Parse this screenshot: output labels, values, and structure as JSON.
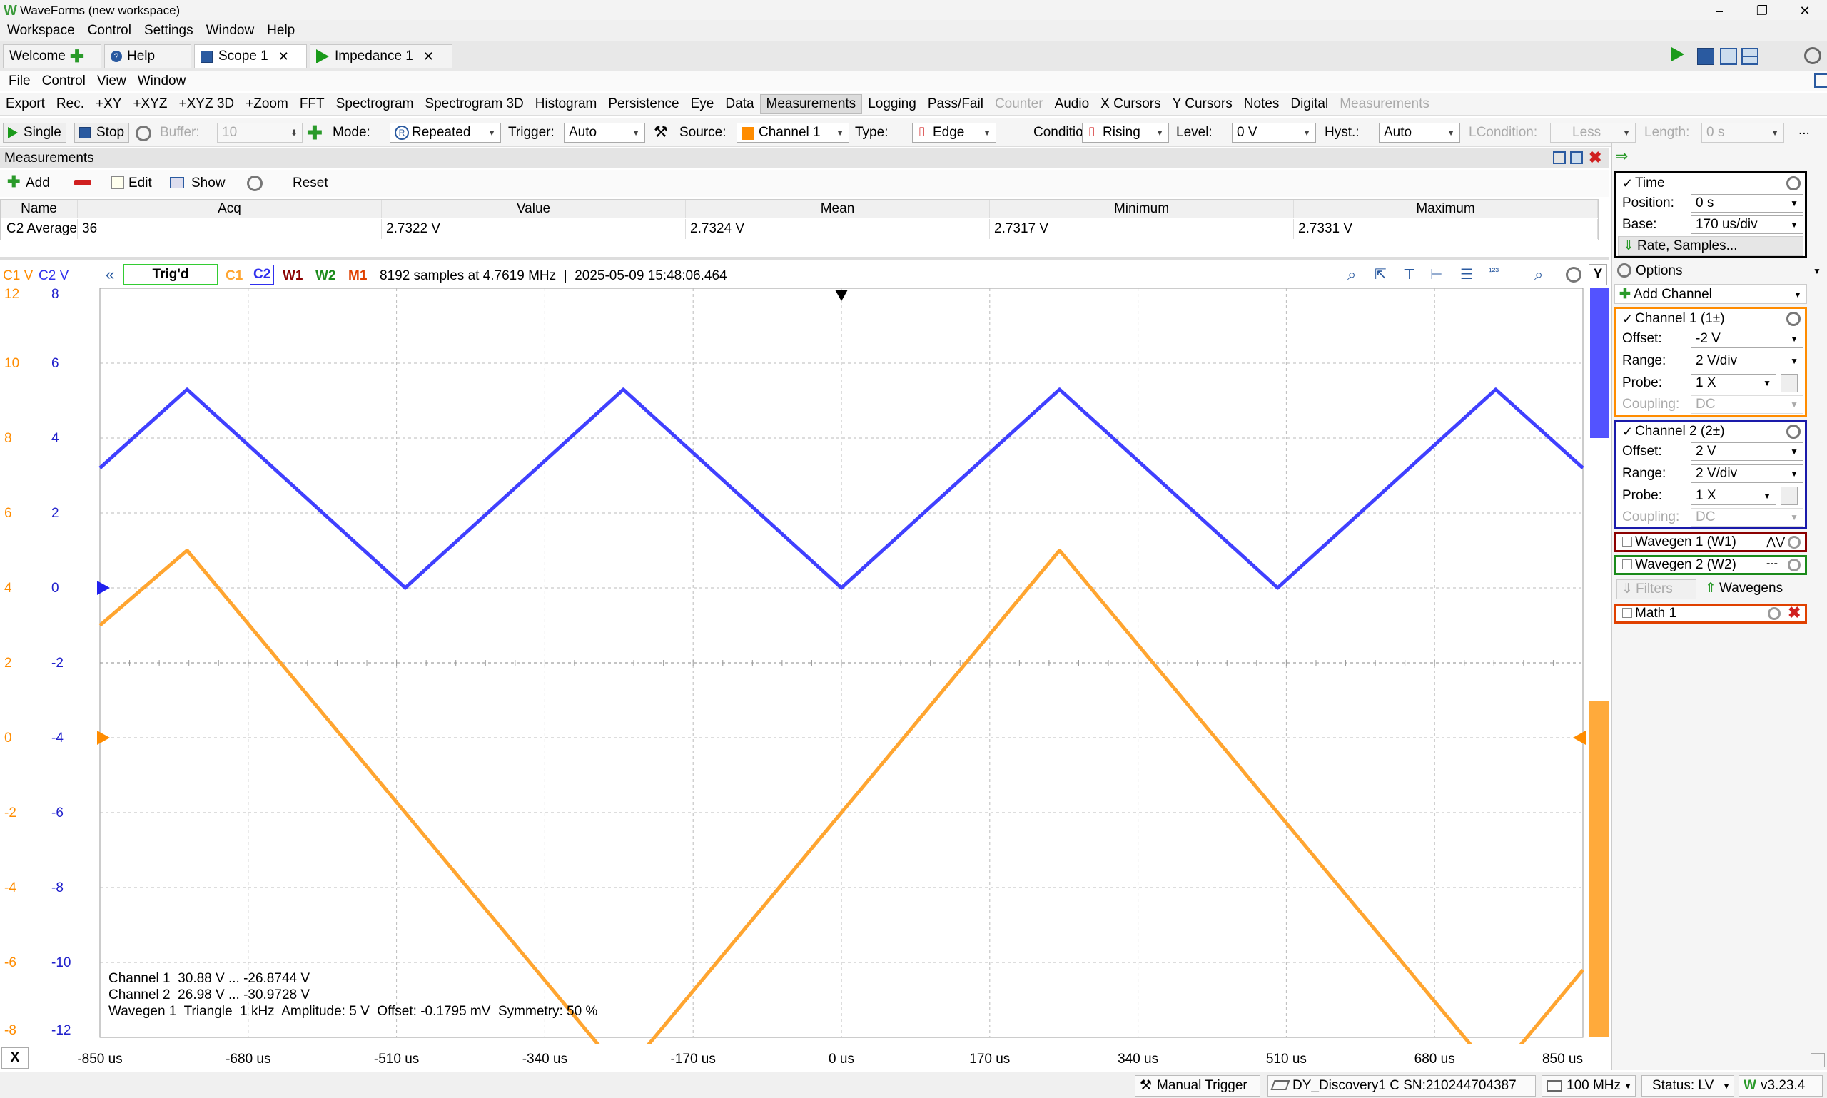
{
  "window": {
    "title": "WaveForms (new workspace)",
    "minimize": "–",
    "maximize": "❐",
    "close": "✕"
  },
  "menu": [
    "Workspace",
    "Control",
    "Settings",
    "Window",
    "Help"
  ],
  "tabs": {
    "welcome": "Welcome",
    "help": "Help",
    "scope": "Scope 1",
    "impedance": "Impedance 1",
    "close": "✕"
  },
  "submenu": [
    "File",
    "Control",
    "View",
    "Window"
  ],
  "tools": {
    "export": "Export",
    "rec": "Rec.",
    "xy": "+XY",
    "xyz": "+XYZ",
    "xyz3d": "+XYZ 3D",
    "zoom": "+Zoom",
    "fft": "FFT",
    "spectrogram": "Spectrogram",
    "spectrogram3d": "Spectrogram 3D",
    "histogram": "Histogram",
    "persistence": "Persistence",
    "eye": "Eye",
    "data": "Data",
    "measurements": "Measurements",
    "logging": "Logging",
    "passfail": "Pass/Fail",
    "counter": "Counter",
    "audio": "Audio",
    "xcursors": "X Cursors",
    "ycursors": "Y Cursors",
    "notes": "Notes",
    "digital": "Digital",
    "measurements2": "Measurements"
  },
  "acq": {
    "single": "Single",
    "stop": "Stop",
    "buffer_label": "Buffer:",
    "buffer_value": "10",
    "mode_label": "Mode:",
    "mode_value": "Repeated",
    "trigger_label": "Trigger:",
    "trigger_value": "Auto",
    "source_label": "Source:",
    "source_value": "Channel 1",
    "type_label": "Type:",
    "type_value": "Edge",
    "condition_label": "Condition:",
    "condition_value": "Rising",
    "level_label": "Level:",
    "level_value": "0 V",
    "hyst_label": "Hyst.:",
    "hyst_value": "Auto",
    "lcondition_label": "LCondition:",
    "lcondition_value": "Less",
    "length_label": "Length:",
    "length_value": "0 s",
    "more": "..."
  },
  "measurements": {
    "title": "Measurements",
    "add": "Add",
    "edit": "Edit",
    "show": "Show",
    "reset": "Reset",
    "columns": [
      "Name",
      "Acq",
      "Value",
      "Mean",
      "Minimum",
      "Maximum"
    ],
    "row": {
      "name": "C2 Average",
      "acq": "36",
      "value": "2.7322 V",
      "mean": "2.7324 V",
      "minimum": "2.7317 V",
      "maximum": "2.7331 V"
    }
  },
  "plot": {
    "c1_unit": "C1 V",
    "c2_unit": "C2 V",
    "trig": "Trig'd",
    "c1": "C1",
    "c2": "C2",
    "w1": "W1",
    "w2": "W2",
    "m1": "M1",
    "info": "8192 samples at 4.7619 MHz  |  2025-05-09 15:48:06.464",
    "y_btn": "Y",
    "x_btn": "X",
    "c1_ticks": [
      "12",
      "10",
      "8",
      "6",
      "4",
      "2",
      "0",
      "-2",
      "-4",
      "-6",
      "-8"
    ],
    "c2_ticks": [
      "8",
      "6",
      "4",
      "2",
      "0",
      "-2",
      "-4",
      "-6",
      "-8",
      "-10",
      "-12"
    ],
    "x_ticks": [
      "-850 us",
      "-680 us",
      "-510 us",
      "-340 us",
      "-170 us",
      "0 us",
      "170 us",
      "340 us",
      "510 us",
      "680 us",
      "850 us"
    ],
    "legend": [
      "Channel 1  30.88 V ... -26.8744 V",
      "Channel 2  26.98 V ... -30.9728 V",
      "Wavegen 1  Triangle  1 kHz  Amplitude: 5 V  Offset: -0.1795 mV  Symmetry: 50 %"
    ]
  },
  "chart_data": {
    "type": "line",
    "title": "",
    "xlabel": "",
    "ylabel": "",
    "x_range_us": [
      -850,
      850
    ],
    "c1_range_v": [
      -8,
      12
    ],
    "c2_range_v": [
      -12,
      8
    ],
    "grid": true,
    "series": [
      {
        "name": "C1",
        "color": "#ffa530",
        "x_us": [
          -850,
          -750,
          -250,
          250,
          750,
          850
        ],
        "values_v": [
          3,
          5,
          -9,
          5,
          -9,
          -6.2
        ]
      },
      {
        "name": "C2",
        "color": "#4040ff",
        "x_us": [
          -850,
          -750,
          -500,
          -250,
          0,
          250,
          500,
          750,
          850
        ],
        "values_v": [
          3.2,
          5.3,
          0,
          5.3,
          0,
          5.3,
          0,
          5.3,
          3.2
        ]
      }
    ]
  },
  "right": {
    "time": "Time",
    "position_label": "Position:",
    "position_value": "0 s",
    "base_label": "Base:",
    "base_value": "170 us/div",
    "rate": "Rate, Samples...",
    "options": "Options",
    "add_channel": "Add Channel",
    "ch1": {
      "title": "Channel 1 (1±)",
      "offset_label": "Offset:",
      "offset": "-2 V",
      "range_label": "Range:",
      "range": "2 V/div",
      "probe_label": "Probe:",
      "probe": "1 X",
      "coupling_label": "Coupling:",
      "coupling": "DC"
    },
    "ch2": {
      "title": "Channel 2 (2±)",
      "offset_label": "Offset:",
      "offset": "2 V",
      "range_label": "Range:",
      "range": "2 V/div",
      "probe_label": "Probe:",
      "probe": "1 X",
      "coupling_label": "Coupling:",
      "coupling": "DC"
    },
    "wg1": "Wavegen 1 (W1)",
    "wg2": "Wavegen 2 (W2)",
    "filters": "Filters",
    "wavegens": "Wavegens",
    "math1": "Math 1"
  },
  "status": {
    "manual_trigger": "Manual Trigger",
    "device": "DY_Discovery1 C SN:210244704387",
    "freq": "100 MHz",
    "status": "Status: LV",
    "version": "v3.23.4"
  },
  "colors": {
    "c1": "#ffa530",
    "c2": "#4040ff",
    "w1": "#8b0000",
    "w2": "#1a8a1a",
    "m1": "#e04000",
    "trig": "#33cc33"
  }
}
